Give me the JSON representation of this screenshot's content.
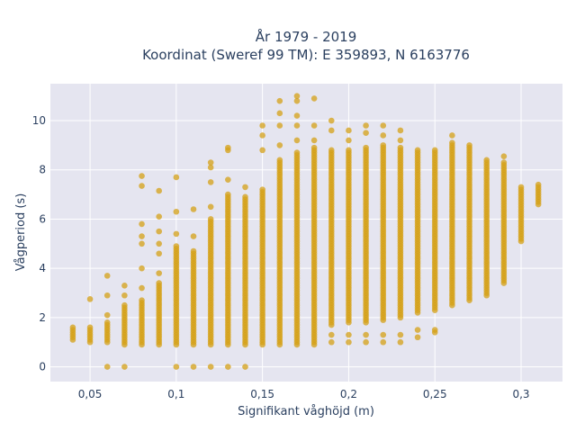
{
  "chart_data": {
    "type": "scatter",
    "title_lines": [
      "År 1979 - 2019",
      "Koordinat (Sweref 99 TM): E 359893, N 6163776"
    ],
    "xlabel": "Signifikant våghöjd (m)",
    "ylabel": "Vågperiod (s)",
    "xlim": [
      0.027,
      0.324
    ],
    "ylim": [
      -0.6,
      11.5
    ],
    "x_ticks": [
      {
        "value": 0.05,
        "label": "0,05"
      },
      {
        "value": 0.1,
        "label": "0,1"
      },
      {
        "value": 0.15,
        "label": "0,15"
      },
      {
        "value": 0.2,
        "label": "0,2"
      },
      {
        "value": 0.25,
        "label": "0,25"
      },
      {
        "value": 0.3,
        "label": "0,3"
      }
    ],
    "y_ticks": [
      {
        "value": 0,
        "label": "0"
      },
      {
        "value": 2,
        "label": "2"
      },
      {
        "value": 4,
        "label": "4"
      },
      {
        "value": 6,
        "label": "6"
      },
      {
        "value": 8,
        "label": "8"
      },
      {
        "value": 10,
        "label": "10"
      }
    ],
    "grid": true,
    "legend": "none",
    "marker_color": "#D4A017",
    "plot_background": "#E5E5F0",
    "columns": [
      {
        "x": 0.04,
        "y_min": 1.1,
        "y_max": 1.6
      },
      {
        "x": 0.05,
        "y_min": 1.0,
        "y_max": 1.6,
        "extra": [
          2.75
        ]
      },
      {
        "x": 0.06,
        "y_min": 1.0,
        "y_max": 1.8,
        "extra": [
          0.0,
          2.1,
          2.9,
          3.7
        ]
      },
      {
        "x": 0.07,
        "y_min": 0.9,
        "y_max": 2.5,
        "extra": [
          0.0,
          2.9,
          3.3
        ]
      },
      {
        "x": 0.08,
        "y_min": 0.9,
        "y_max": 2.7,
        "extra": [
          3.2,
          4.0,
          5.0,
          5.3,
          5.8,
          7.35,
          7.75
        ]
      },
      {
        "x": 0.09,
        "y_min": 0.9,
        "y_max": 3.4,
        "extra": [
          3.8,
          4.6,
          5.0,
          5.5,
          6.1,
          7.15
        ]
      },
      {
        "x": 0.1,
        "y_min": 0.9,
        "y_max": 4.9,
        "extra": [
          0.0,
          5.4,
          6.3,
          7.7
        ]
      },
      {
        "x": 0.11,
        "y_min": 0.9,
        "y_max": 4.7,
        "extra": [
          0.0,
          5.3,
          6.4
        ]
      },
      {
        "x": 0.12,
        "y_min": 0.9,
        "y_max": 6.0,
        "extra": [
          0.0,
          6.5,
          7.5,
          8.1,
          8.3
        ]
      },
      {
        "x": 0.13,
        "y_min": 0.9,
        "y_max": 7.0,
        "extra": [
          0.0,
          7.6,
          8.8,
          8.9
        ]
      },
      {
        "x": 0.14,
        "y_min": 0.9,
        "y_max": 6.9,
        "extra": [
          0.0,
          7.3
        ]
      },
      {
        "x": 0.15,
        "y_min": 0.9,
        "y_max": 7.2,
        "extra": [
          8.8,
          9.4,
          9.8
        ]
      },
      {
        "x": 0.16,
        "y_min": 0.9,
        "y_max": 8.4,
        "extra": [
          9.0,
          9.8,
          10.3,
          10.8
        ]
      },
      {
        "x": 0.17,
        "y_min": 0.9,
        "y_max": 8.7,
        "extra": [
          9.2,
          9.8,
          10.2,
          10.8,
          11.0
        ]
      },
      {
        "x": 0.18,
        "y_min": 0.9,
        "y_max": 8.9,
        "extra": [
          9.2,
          9.8,
          10.9
        ]
      },
      {
        "x": 0.19,
        "y_min": 1.7,
        "y_max": 8.8,
        "extra": [
          1.0,
          1.3,
          9.6,
          10.0
        ]
      },
      {
        "x": 0.2,
        "y_min": 1.8,
        "y_max": 8.8,
        "extra": [
          1.0,
          1.3,
          9.2,
          9.6
        ]
      },
      {
        "x": 0.21,
        "y_min": 1.8,
        "y_max": 8.9,
        "extra": [
          1.0,
          1.3,
          9.5,
          9.8
        ]
      },
      {
        "x": 0.22,
        "y_min": 1.9,
        "y_max": 9.0,
        "extra": [
          1.0,
          1.3,
          9.4,
          9.8
        ]
      },
      {
        "x": 0.23,
        "y_min": 2.0,
        "y_max": 8.9,
        "extra": [
          1.0,
          1.3,
          9.2,
          9.6
        ]
      },
      {
        "x": 0.24,
        "y_min": 2.2,
        "y_max": 8.8,
        "extra": [
          1.2,
          1.5
        ]
      },
      {
        "x": 0.25,
        "y_min": 2.3,
        "y_max": 8.8,
        "extra": [
          1.4,
          1.5
        ]
      },
      {
        "x": 0.26,
        "y_min": 2.5,
        "y_max": 9.1,
        "extra": [
          9.4
        ]
      },
      {
        "x": 0.27,
        "y_min": 2.7,
        "y_max": 9.0
      },
      {
        "x": 0.28,
        "y_min": 2.9,
        "y_max": 8.4
      },
      {
        "x": 0.29,
        "y_min": 3.4,
        "y_max": 8.3,
        "extra": [
          8.55
        ]
      },
      {
        "x": 0.3,
        "y_min": 5.1,
        "y_max": 7.3
      },
      {
        "x": 0.31,
        "y_min": 6.6,
        "y_max": 7.4
      }
    ]
  }
}
